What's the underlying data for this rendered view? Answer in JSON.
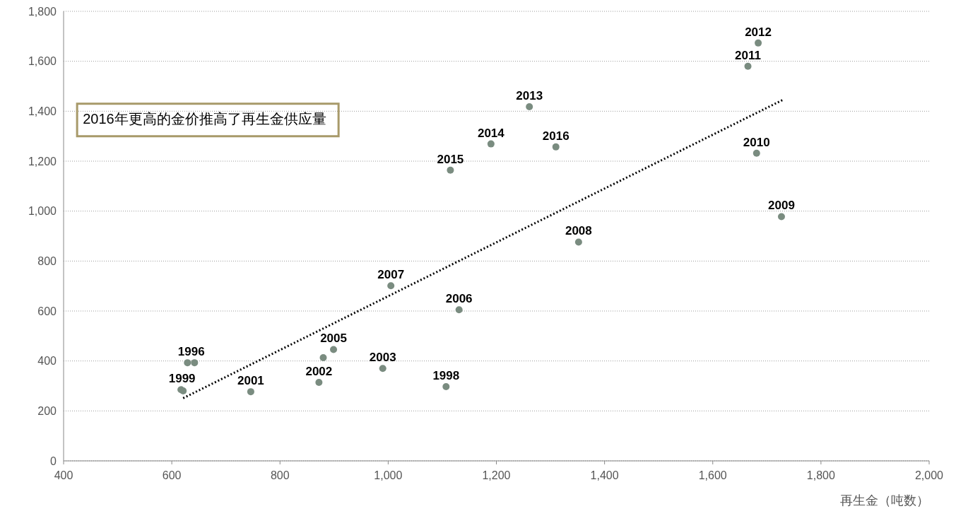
{
  "chart_data": {
    "type": "scatter",
    "xlabel": "再生金（吨数）",
    "xlim": [
      400,
      2000
    ],
    "xticks": [
      {
        "value": 400,
        "label": "400"
      },
      {
        "value": 600,
        "label": "600"
      },
      {
        "value": 800,
        "label": "800"
      },
      {
        "value": 1000,
        "label": "1,000"
      },
      {
        "value": 1200,
        "label": "1,200"
      },
      {
        "value": 1400,
        "label": "1,400"
      },
      {
        "value": 1600,
        "label": "1,600"
      },
      {
        "value": 1800,
        "label": "1,800"
      },
      {
        "value": 2000,
        "label": "2,000"
      }
    ],
    "ylim": [
      0,
      1800
    ],
    "yticks": [
      0,
      200,
      400,
      600,
      800,
      {
        "value": 1000,
        "label": "1,000"
      },
      {
        "value": 1200,
        "label": "1,200"
      },
      {
        "value": 1400,
        "label": "1,400"
      },
      {
        "value": 1600,
        "label": "1,600"
      },
      {
        "value": 1800,
        "label": "1,800"
      }
    ],
    "grid": "y",
    "series": [
      {
        "marker": "circle",
        "color": "#7a8c80",
        "x": [
          629,
          642,
          1107,
          617,
          621,
          746,
          872,
          990,
          880,
          899,
          1131,
          1005,
          1352,
          1727,
          1681,
          1665,
          1684,
          1261,
          1190,
          1115,
          1310
        ],
        "values": [
          393,
          393,
          297,
          285,
          280,
          277,
          314,
          370,
          413,
          446,
          605,
          701,
          876,
          978,
          1232,
          1580,
          1673,
          1418,
          1269,
          1164,
          1257
        ]
      },
      {
        "type": "line",
        "color": "#000000",
        "line_style": "dotted",
        "x": [
          621,
          1731
        ],
        "values": [
          251,
          1447
        ]
      }
    ],
    "annotations": [
      {
        "text": "1996",
        "x": 636,
        "y": 393
      },
      {
        "text": "1998",
        "x": 1107,
        "y": 297
      },
      {
        "text": "1999",
        "x": 619,
        "y": 285
      },
      {
        "text": "2001",
        "x": 746,
        "y": 277
      },
      {
        "text": "2002",
        "x": 872,
        "y": 314
      },
      {
        "text": "2003",
        "x": 990,
        "y": 370
      },
      {
        "text": "2005",
        "x": 899,
        "y": 446
      },
      {
        "text": "2006",
        "x": 1131,
        "y": 605
      },
      {
        "text": "2007",
        "x": 1005,
        "y": 701
      },
      {
        "text": "2008",
        "x": 1352,
        "y": 876
      },
      {
        "text": "2009",
        "x": 1727,
        "y": 978
      },
      {
        "text": "2010",
        "x": 1681,
        "y": 1232
      },
      {
        "text": "2011",
        "x": 1665,
        "y": 1580
      },
      {
        "text": "2012",
        "x": 1684,
        "y": 1673
      },
      {
        "text": "2013",
        "x": 1261,
        "y": 1418
      },
      {
        "text": "2014",
        "x": 1190,
        "y": 1269
      },
      {
        "text": "2015",
        "x": 1115,
        "y": 1164
      },
      {
        "text": "2016",
        "x": 1310,
        "y": 1257
      },
      "2016年更高的金价推高了再生金供应量"
    ]
  }
}
